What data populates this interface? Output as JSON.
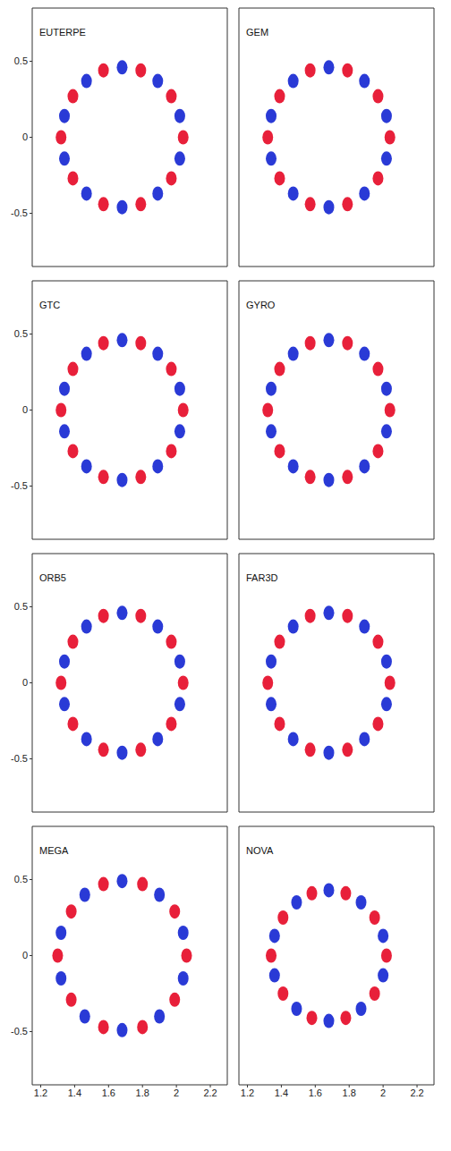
{
  "chart_data": [
    {
      "type": "scatter",
      "title": "EUTERPE",
      "xlim": [
        1.15,
        2.3
      ],
      "ylim": [
        -0.85,
        0.85
      ],
      "xticks": [
        1.2,
        1.4,
        1.6,
        1.8,
        2,
        2.2
      ],
      "yticks": [
        -0.5,
        0,
        0.5
      ],
      "tick_labels": "y",
      "series": [
        {
          "color": "#e8203a",
          "x": [
            2.04,
            1.97,
            1.79,
            1.57,
            1.39,
            1.32,
            1.39,
            1.57,
            1.79,
            1.97
          ],
          "y": [
            0,
            0.27,
            0.44,
            0.44,
            0.27,
            0,
            -0.27,
            -0.44,
            -0.44,
            -0.27
          ]
        },
        {
          "color": "#2a3ad6",
          "x": [
            2.02,
            1.89,
            1.68,
            1.47,
            1.34,
            1.34,
            1.47,
            1.68,
            1.89,
            2.02
          ],
          "y": [
            0.14,
            0.37,
            0.46,
            0.37,
            0.14,
            -0.14,
            -0.37,
            -0.46,
            -0.37,
            -0.14
          ]
        }
      ]
    },
    {
      "type": "scatter",
      "title": "GEM",
      "xlim": [
        1.15,
        2.3
      ],
      "ylim": [
        -0.85,
        0.85
      ],
      "xticks": [
        1.2,
        1.4,
        1.6,
        1.8,
        2,
        2.2
      ],
      "yticks": [
        -0.5,
        0,
        0.5
      ],
      "tick_labels": false,
      "series": [
        {
          "color": "#e8203a",
          "x": [
            2.04,
            1.97,
            1.79,
            1.57,
            1.39,
            1.32,
            1.39,
            1.57,
            1.79,
            1.97
          ],
          "y": [
            0,
            0.27,
            0.44,
            0.44,
            0.27,
            0,
            -0.27,
            -0.44,
            -0.44,
            -0.27
          ]
        },
        {
          "color": "#2a3ad6",
          "x": [
            2.02,
            1.89,
            1.68,
            1.47,
            1.34,
            1.34,
            1.47,
            1.68,
            1.89,
            2.02
          ],
          "y": [
            0.14,
            0.37,
            0.46,
            0.37,
            0.14,
            -0.14,
            -0.37,
            -0.46,
            -0.37,
            -0.14
          ]
        }
      ]
    },
    {
      "type": "scatter",
      "title": "GTC",
      "xlim": [
        1.15,
        2.3
      ],
      "ylim": [
        -0.85,
        0.85
      ],
      "xticks": [
        1.2,
        1.4,
        1.6,
        1.8,
        2,
        2.2
      ],
      "yticks": [
        -0.5,
        0,
        0.5
      ],
      "tick_labels": "y",
      "series": [
        {
          "color": "#e8203a",
          "x": [
            2.04,
            1.97,
            1.79,
            1.57,
            1.39,
            1.32,
            1.39,
            1.57,
            1.79,
            1.97
          ],
          "y": [
            0,
            0.27,
            0.44,
            0.44,
            0.27,
            0,
            -0.27,
            -0.44,
            -0.44,
            -0.27
          ]
        },
        {
          "color": "#2a3ad6",
          "x": [
            2.02,
            1.89,
            1.68,
            1.47,
            1.34,
            1.34,
            1.47,
            1.68,
            1.89,
            2.02
          ],
          "y": [
            0.14,
            0.37,
            0.46,
            0.37,
            0.14,
            -0.14,
            -0.37,
            -0.46,
            -0.37,
            -0.14
          ]
        }
      ]
    },
    {
      "type": "scatter",
      "title": "GYRO",
      "xlim": [
        1.15,
        2.3
      ],
      "ylim": [
        -0.85,
        0.85
      ],
      "xticks": [
        1.2,
        1.4,
        1.6,
        1.8,
        2,
        2.2
      ],
      "yticks": [
        -0.5,
        0,
        0.5
      ],
      "tick_labels": false,
      "series": [
        {
          "color": "#e8203a",
          "x": [
            2.04,
            1.97,
            1.79,
            1.57,
            1.39,
            1.32,
            1.39,
            1.57,
            1.79,
            1.97
          ],
          "y": [
            0,
            0.27,
            0.44,
            0.44,
            0.27,
            0,
            -0.27,
            -0.44,
            -0.44,
            -0.27
          ]
        },
        {
          "color": "#2a3ad6",
          "x": [
            2.02,
            1.89,
            1.68,
            1.47,
            1.34,
            1.34,
            1.47,
            1.68,
            1.89,
            2.02
          ],
          "y": [
            0.14,
            0.37,
            0.46,
            0.37,
            0.14,
            -0.14,
            -0.37,
            -0.46,
            -0.37,
            -0.14
          ]
        }
      ]
    },
    {
      "type": "scatter",
      "title": "ORB5",
      "xlim": [
        1.15,
        2.3
      ],
      "ylim": [
        -0.85,
        0.85
      ],
      "xticks": [
        1.2,
        1.4,
        1.6,
        1.8,
        2,
        2.2
      ],
      "yticks": [
        -0.5,
        0,
        0.5
      ],
      "tick_labels": "y",
      "series": [
        {
          "color": "#e8203a",
          "x": [
            2.04,
            1.97,
            1.79,
            1.57,
            1.39,
            1.32,
            1.39,
            1.57,
            1.79,
            1.97
          ],
          "y": [
            0,
            0.27,
            0.44,
            0.44,
            0.27,
            0,
            -0.27,
            -0.44,
            -0.44,
            -0.27
          ]
        },
        {
          "color": "#2a3ad6",
          "x": [
            2.02,
            1.89,
            1.68,
            1.47,
            1.34,
            1.34,
            1.47,
            1.68,
            1.89,
            2.02
          ],
          "y": [
            0.14,
            0.37,
            0.46,
            0.37,
            0.14,
            -0.14,
            -0.37,
            -0.46,
            -0.37,
            -0.14
          ]
        }
      ]
    },
    {
      "type": "scatter",
      "title": "FAR3D",
      "xlim": [
        1.15,
        2.3
      ],
      "ylim": [
        -0.85,
        0.85
      ],
      "xticks": [
        1.2,
        1.4,
        1.6,
        1.8,
        2,
        2.2
      ],
      "yticks": [
        -0.5,
        0,
        0.5
      ],
      "tick_labels": false,
      "series": [
        {
          "color": "#e8203a",
          "x": [
            2.04,
            1.97,
            1.79,
            1.57,
            1.39,
            1.32,
            1.39,
            1.57,
            1.79,
            1.97
          ],
          "y": [
            0,
            0.27,
            0.44,
            0.44,
            0.27,
            0,
            -0.27,
            -0.44,
            -0.44,
            -0.27
          ]
        },
        {
          "color": "#2a3ad6",
          "x": [
            2.02,
            1.89,
            1.68,
            1.47,
            1.34,
            1.34,
            1.47,
            1.68,
            1.89,
            2.02
          ],
          "y": [
            0.14,
            0.37,
            0.46,
            0.37,
            0.14,
            -0.14,
            -0.37,
            -0.46,
            -0.37,
            -0.14
          ]
        }
      ]
    },
    {
      "type": "scatter",
      "title": "MEGA",
      "xlim": [
        1.15,
        2.3
      ],
      "ylim": [
        -0.85,
        0.85
      ],
      "xticks": [
        1.2,
        1.4,
        1.6,
        1.8,
        2,
        2.2
      ],
      "yticks": [
        -0.5,
        0,
        0.5
      ],
      "tick_labels": true,
      "series": [
        {
          "color": "#e8203a",
          "x": [
            2.06,
            1.99,
            1.8,
            1.57,
            1.38,
            1.3,
            1.38,
            1.57,
            1.8,
            1.99
          ],
          "y": [
            0,
            0.29,
            0.47,
            0.47,
            0.29,
            0,
            -0.29,
            -0.47,
            -0.47,
            -0.29
          ]
        },
        {
          "color": "#2a3ad6",
          "x": [
            2.04,
            1.9,
            1.68,
            1.46,
            1.32,
            1.32,
            1.46,
            1.68,
            1.9,
            2.04
          ],
          "y": [
            0.15,
            0.4,
            0.49,
            0.4,
            0.15,
            -0.15,
            -0.4,
            -0.49,
            -0.4,
            -0.15
          ]
        }
      ]
    },
    {
      "type": "scatter",
      "title": "NOVA",
      "xlim": [
        1.15,
        2.3
      ],
      "ylim": [
        -0.85,
        0.85
      ],
      "xticks": [
        1.2,
        1.4,
        1.6,
        1.8,
        2,
        2.2
      ],
      "yticks": [
        -0.5,
        0,
        0.5
      ],
      "tick_labels": "x",
      "series": [
        {
          "color": "#e8203a",
          "x": [
            2.02,
            1.95,
            1.78,
            1.58,
            1.41,
            1.34,
            1.41,
            1.58,
            1.78,
            1.95
          ],
          "y": [
            0,
            0.25,
            0.41,
            0.41,
            0.25,
            0,
            -0.25,
            -0.41,
            -0.41,
            -0.25
          ]
        },
        {
          "color": "#2a3ad6",
          "x": [
            2.0,
            1.87,
            1.68,
            1.49,
            1.36,
            1.36,
            1.49,
            1.68,
            1.87,
            2.0
          ],
          "y": [
            0.13,
            0.35,
            0.43,
            0.35,
            0.13,
            -0.13,
            -0.35,
            -0.43,
            -0.35,
            -0.13
          ]
        }
      ]
    }
  ]
}
